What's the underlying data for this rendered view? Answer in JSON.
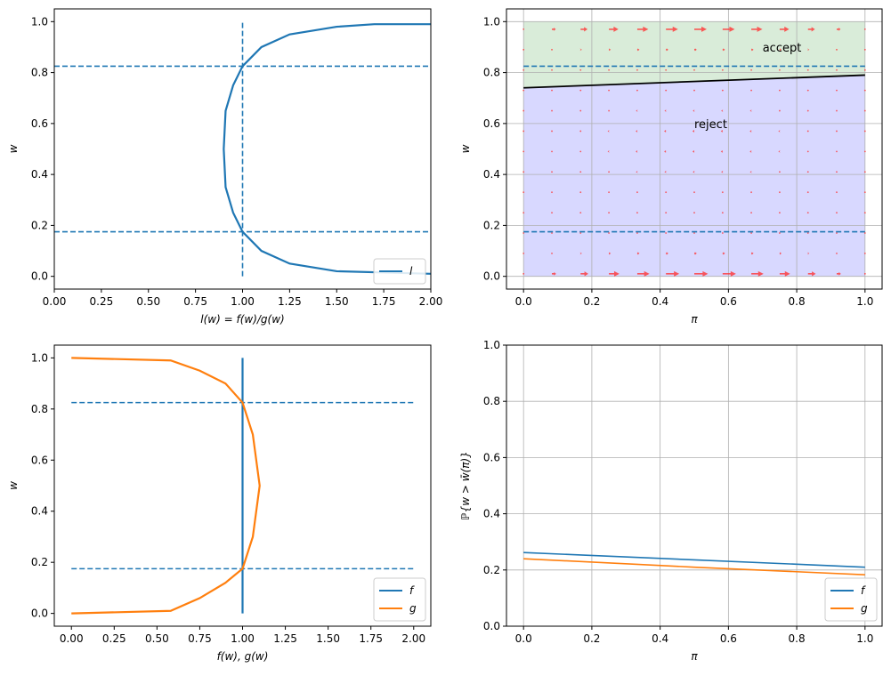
{
  "colors": {
    "blue": "#1f77b4",
    "orange": "#ff7f0e",
    "accept_fill": "#d9ecd9",
    "reject_fill": "#d8d8ff",
    "arrow": "#ff3333",
    "boundary": "#000000",
    "grid": "#b0b0b0"
  },
  "chart_data": [
    {
      "type": "line",
      "id": "tl",
      "xlabel": "l(w) = f(w)/g(w)",
      "ylabel": "w",
      "xlim": [
        0,
        2
      ],
      "ylim": [
        -0.05,
        1.05
      ],
      "xticks": [
        0,
        0.25,
        0.5,
        0.75,
        1,
        1.25,
        1.5,
        1.75,
        2
      ],
      "xtick_labels": [
        "0.00",
        "0.25",
        "0.50",
        "0.75",
        "1.00",
        "1.25",
        "1.50",
        "1.75",
        "2.00"
      ],
      "yticks": [
        0,
        0.2,
        0.4,
        0.6,
        0.8,
        1
      ],
      "ytick_labels": [
        "0.0",
        "0.2",
        "0.4",
        "0.6",
        "0.8",
        "1.0"
      ],
      "grid": false,
      "legend": "lower right",
      "series": [
        {
          "name": "l",
          "color": "#1f77b4",
          "x": [
            2.0,
            1.5,
            1.25,
            1.1,
            1.0,
            0.95,
            0.91,
            0.9,
            0.91,
            0.95,
            1.0,
            1.1,
            1.25,
            1.5,
            1.7,
            2.0
          ],
          "y": [
            0.01,
            0.02,
            0.05,
            0.1,
            0.175,
            0.25,
            0.35,
            0.5,
            0.65,
            0.75,
            0.825,
            0.9,
            0.95,
            0.98,
            0.99,
            0.99
          ]
        }
      ],
      "hlines": [
        {
          "y": 0.175,
          "x": [
            0,
            2
          ]
        },
        {
          "y": 0.825,
          "x": [
            0,
            2
          ]
        }
      ],
      "vlines": [
        {
          "x": 1,
          "y": [
            0,
            1
          ]
        }
      ]
    },
    {
      "type": "quiver",
      "id": "tr",
      "xlabel": "π",
      "ylabel": "w",
      "xlim": [
        -0.05,
        1.05
      ],
      "ylim": [
        -0.05,
        1.05
      ],
      "xticks": [
        0,
        0.2,
        0.4,
        0.6,
        0.8,
        1
      ],
      "xtick_labels": [
        "0.0",
        "0.2",
        "0.4",
        "0.6",
        "0.8",
        "1.0"
      ],
      "yticks": [
        0,
        0.2,
        0.4,
        0.6,
        0.8,
        1
      ],
      "ytick_labels": [
        "0.0",
        "0.2",
        "0.4",
        "0.6",
        "0.8",
        "1.0"
      ],
      "grid": true,
      "boundary": {
        "x": [
          0,
          1
        ],
        "y": [
          0.74,
          0.79
        ]
      },
      "regions": [
        {
          "label": "accept",
          "label_at": [
            0.7,
            0.9
          ]
        },
        {
          "label": "reject",
          "label_at": [
            0.5,
            0.6
          ]
        }
      ],
      "hlines": [
        {
          "y": 0.175,
          "x": [
            0,
            1
          ]
        },
        {
          "y": 0.825,
          "x": [
            0,
            1
          ]
        }
      ],
      "quiver": {
        "pi": [
          0,
          0.083,
          0.167,
          0.25,
          0.333,
          0.417,
          0.5,
          0.583,
          0.667,
          0.75,
          0.833,
          0.917,
          1
        ],
        "w": [
          0.97,
          0.89,
          0.81,
          0.73,
          0.65,
          0.57,
          0.49,
          0.41,
          0.33,
          0.25,
          0.17,
          0.09,
          0.01
        ],
        "u": [
          [
            0,
            0.31,
            0.56,
            0.76,
            0.89,
            0.97,
            1,
            0.97,
            0.89,
            0.76,
            0.56,
            0.31,
            0
          ],
          [
            0,
            0.06,
            0.11,
            0.15,
            0.18,
            0.19,
            0.2,
            0.19,
            0.18,
            0.15,
            0.11,
            0.06,
            0
          ],
          [
            0,
            0.03,
            0.06,
            0.08,
            0.09,
            0.1,
            0.1,
            0.1,
            0.09,
            0.08,
            0.06,
            0.03,
            0
          ],
          [
            0,
            -0.02,
            -0.03,
            -0.04,
            -0.04,
            -0.05,
            -0.05,
            -0.05,
            -0.04,
            -0.04,
            -0.03,
            -0.02,
            0
          ],
          [
            0,
            -0.04,
            -0.07,
            -0.09,
            -0.11,
            -0.12,
            -0.12,
            -0.12,
            -0.11,
            -0.09,
            -0.07,
            -0.04,
            0
          ],
          [
            0,
            -0.05,
            -0.08,
            -0.11,
            -0.13,
            -0.15,
            -0.15,
            -0.15,
            -0.13,
            -0.11,
            -0.08,
            -0.05,
            0
          ],
          [
            0,
            -0.05,
            -0.08,
            -0.11,
            -0.13,
            -0.15,
            -0.15,
            -0.15,
            -0.13,
            -0.11,
            -0.08,
            -0.05,
            0
          ],
          [
            0,
            -0.04,
            -0.07,
            -0.09,
            -0.11,
            -0.12,
            -0.12,
            -0.12,
            -0.11,
            -0.09,
            -0.07,
            -0.04,
            0
          ],
          [
            0,
            -0.02,
            -0.04,
            -0.06,
            -0.07,
            -0.08,
            -0.08,
            -0.08,
            -0.07,
            -0.06,
            -0.04,
            -0.02,
            0
          ],
          [
            0,
            -0.01,
            -0.02,
            -0.02,
            -0.03,
            -0.03,
            -0.03,
            -0.03,
            -0.03,
            -0.02,
            -0.02,
            -0.01,
            0
          ],
          [
            0,
            0.01,
            0.02,
            0.02,
            0.03,
            0.03,
            0.03,
            0.03,
            0.03,
            0.02,
            0.02,
            0.01,
            0
          ],
          [
            0,
            0.06,
            0.11,
            0.15,
            0.18,
            0.19,
            0.2,
            0.19,
            0.18,
            0.15,
            0.11,
            0.06,
            0
          ],
          [
            0,
            0.34,
            0.62,
            0.84,
            0.98,
            1.07,
            1.1,
            1.07,
            0.98,
            0.84,
            0.62,
            0.34,
            0
          ]
        ]
      }
    },
    {
      "type": "line",
      "id": "bl",
      "xlabel": "f(w), g(w)",
      "ylabel": "w",
      "xlim": [
        -0.1,
        2.1
      ],
      "ylim": [
        -0.05,
        1.05
      ],
      "xticks": [
        0,
        0.25,
        0.5,
        0.75,
        1,
        1.25,
        1.5,
        1.75,
        2
      ],
      "xtick_labels": [
        "0.00",
        "0.25",
        "0.50",
        "0.75",
        "1.00",
        "1.25",
        "1.50",
        "1.75",
        "2.00"
      ],
      "yticks": [
        0,
        0.2,
        0.4,
        0.6,
        0.8,
        1
      ],
      "ytick_labels": [
        "0.0",
        "0.2",
        "0.4",
        "0.6",
        "0.8",
        "1.0"
      ],
      "grid": false,
      "legend": "lower right",
      "series": [
        {
          "name": "f",
          "color": "#1f77b4",
          "x": [
            1,
            1
          ],
          "y": [
            0,
            1
          ]
        },
        {
          "name": "g",
          "color": "#ff7f0e",
          "x": [
            0,
            0.58,
            0.75,
            0.9,
            1.0,
            1.06,
            1.1,
            1.06,
            1.0,
            0.9,
            0.75,
            0.58,
            0
          ],
          "y": [
            0,
            0.01,
            0.06,
            0.12,
            0.175,
            0.3,
            0.5,
            0.7,
            0.825,
            0.9,
            0.95,
            0.99,
            1
          ]
        }
      ],
      "hlines": [
        {
          "y": 0.175,
          "x": [
            0,
            2
          ]
        },
        {
          "y": 0.825,
          "x": [
            0,
            2
          ]
        }
      ]
    },
    {
      "type": "line",
      "id": "br",
      "xlabel": "π",
      "ylabel": "ℙ{w > w̄(π)}",
      "xlim": [
        -0.05,
        1.05
      ],
      "ylim": [
        0,
        1
      ],
      "xticks": [
        0,
        0.2,
        0.4,
        0.6,
        0.8,
        1
      ],
      "xtick_labels": [
        "0.0",
        "0.2",
        "0.4",
        "0.6",
        "0.8",
        "1.0"
      ],
      "yticks": [
        0,
        0.2,
        0.4,
        0.6,
        0.8,
        1
      ],
      "ytick_labels": [
        "0.0",
        "0.2",
        "0.4",
        "0.6",
        "0.8",
        "1.0"
      ],
      "grid": true,
      "legend": "lower right",
      "series": [
        {
          "name": "f",
          "color": "#1f77b4",
          "x": [
            0,
            0.5,
            1
          ],
          "y": [
            0.262,
            0.236,
            0.21
          ]
        },
        {
          "name": "g",
          "color": "#ff7f0e",
          "x": [
            0,
            0.5,
            1
          ],
          "y": [
            0.24,
            0.21,
            0.183
          ]
        }
      ]
    }
  ]
}
